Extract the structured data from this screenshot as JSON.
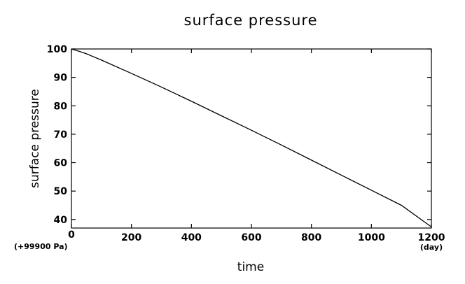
{
  "chart_data": {
    "type": "line",
    "title": "surface pressure",
    "xlabel": "time",
    "ylabel": "surface pressure",
    "x_unit": "(day)",
    "y_offset_label": "(+99900 Pa)",
    "xlim": [
      0,
      1200
    ],
    "ylim": [
      37,
      100
    ],
    "x_ticks": [
      0,
      200,
      400,
      600,
      800,
      1000,
      1200
    ],
    "y_ticks": [
      40,
      50,
      60,
      70,
      80,
      90,
      100
    ],
    "grid": false,
    "series": [
      {
        "color": "#000000",
        "x": [
          0,
          25,
          50,
          100,
          200,
          300,
          400,
          500,
          600,
          700,
          800,
          900,
          1000,
          1100,
          1200
        ],
        "y": [
          100,
          99.2,
          98.3,
          96.1,
          91.4,
          86.6,
          81.6,
          76.5,
          71.4,
          66.2,
          60.9,
          55.6,
          50.3,
          45.0,
          37.4
        ]
      }
    ]
  }
}
